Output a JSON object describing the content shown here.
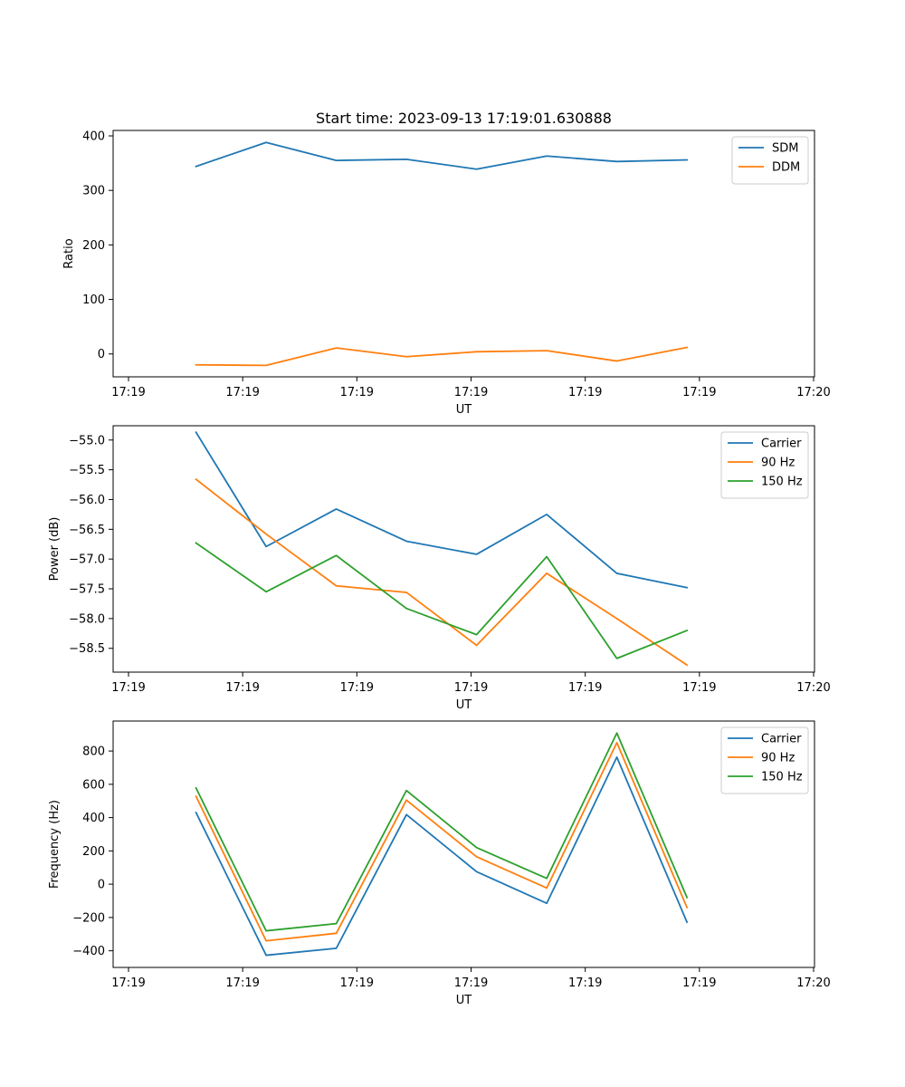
{
  "chart_data": [
    {
      "type": "line",
      "title": "Start time: 2023-09-13 17:19:01.630888",
      "xlabel": "UT",
      "ylabel": "Ratio",
      "x_tick_labels": [
        "17:19",
        "17:19",
        "17:19",
        "17:19",
        "17:19",
        "17:19",
        "17:20"
      ],
      "y_ticks": [
        0,
        100,
        200,
        300,
        400
      ],
      "y_tick_labels": [
        "0",
        "100",
        "200",
        "300",
        "400"
      ],
      "ylim": [
        -42,
        410
      ],
      "xlim": [
        -0.05,
        1.05
      ],
      "x": [
        0.08,
        0.19,
        0.3,
        0.41,
        0.52,
        0.63,
        0.74,
        0.85
      ],
      "series": [
        {
          "name": "SDM",
          "color": "#1f77b4",
          "values": [
            344,
            388,
            355,
            357,
            339,
            363,
            353,
            356
          ]
        },
        {
          "name": "DDM",
          "color": "#ff7f0e",
          "values": [
            -20,
            -21,
            11,
            -5,
            4,
            6,
            -13,
            12
          ]
        }
      ],
      "legend": "top-right"
    },
    {
      "type": "line",
      "title": "",
      "xlabel": "UT",
      "ylabel": "Power (dB)",
      "x_tick_labels": [
        "17:19",
        "17:19",
        "17:19",
        "17:19",
        "17:19",
        "17:19",
        "17:20"
      ],
      "y_ticks": [
        -58.5,
        -58.0,
        -57.5,
        -57.0,
        -56.5,
        -56.0,
        -55.5,
        -55.0
      ],
      "y_tick_labels": [
        "−58.5",
        "−58.0",
        "−57.5",
        "−57.0",
        "−56.5",
        "−56.0",
        "−55.5",
        "−55.0"
      ],
      "ylim": [
        -58.9,
        -54.76
      ],
      "xlim": [
        -0.05,
        1.05
      ],
      "x": [
        0.08,
        0.19,
        0.3,
        0.41,
        0.52,
        0.63,
        0.74,
        0.85
      ],
      "series": [
        {
          "name": "Carrier",
          "color": "#1f77b4",
          "values": [
            -54.87,
            -56.79,
            -56.16,
            -56.7,
            -56.92,
            -56.25,
            -57.24,
            -57.48
          ]
        },
        {
          "name": "90 Hz",
          "color": "#ff7f0e",
          "values": [
            -55.66,
            -56.58,
            -57.45,
            -57.56,
            -58.45,
            -57.24,
            -58.0,
            -58.78
          ]
        },
        {
          "name": "150 Hz",
          "color": "#2ca02c",
          "values": [
            -56.73,
            -57.55,
            -56.94,
            -57.83,
            -58.27,
            -56.96,
            -58.67,
            -58.2
          ]
        }
      ],
      "legend": "top-right"
    },
    {
      "type": "line",
      "title": "",
      "xlabel": "UT",
      "ylabel": "Frequency (Hz)",
      "x_tick_labels": [
        "17:19",
        "17:19",
        "17:19",
        "17:19",
        "17:19",
        "17:19",
        "17:20"
      ],
      "y_ticks": [
        -400,
        -200,
        0,
        200,
        400,
        600,
        800
      ],
      "y_tick_labels": [
        "−400",
        "−200",
        "0",
        "200",
        "400",
        "600",
        "800"
      ],
      "ylim": [
        -500,
        980
      ],
      "xlim": [
        -0.05,
        1.05
      ],
      "x": [
        0.08,
        0.19,
        0.3,
        0.41,
        0.52,
        0.63,
        0.74,
        0.85
      ],
      "series": [
        {
          "name": "Carrier",
          "color": "#1f77b4",
          "values": [
            430,
            -427,
            -385,
            418,
            75,
            -115,
            763,
            -228
          ]
        },
        {
          "name": "90 Hz",
          "color": "#ff7f0e",
          "values": [
            528,
            -340,
            -295,
            505,
            165,
            -23,
            850,
            -140
          ]
        },
        {
          "name": "150 Hz",
          "color": "#2ca02c",
          "values": [
            578,
            -280,
            -237,
            563,
            220,
            35,
            908,
            -80
          ]
        }
      ],
      "legend": "top-right"
    }
  ]
}
